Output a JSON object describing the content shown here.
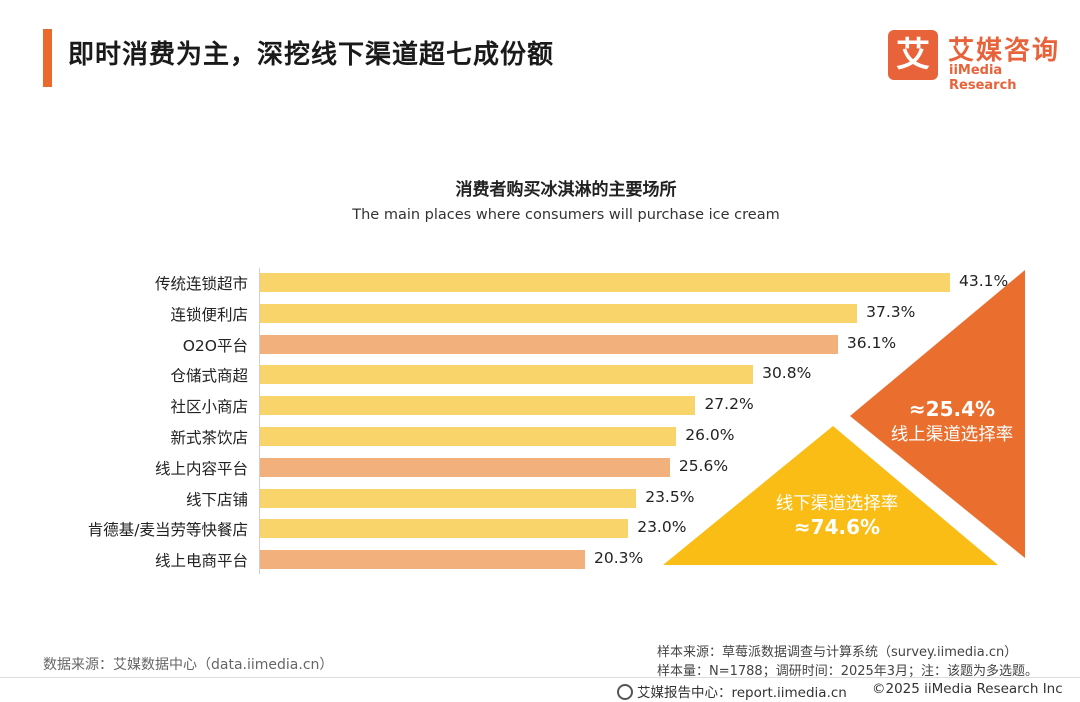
{
  "header": {
    "title": "即时消费为主，深挖线下渠道超七成份额"
  },
  "logo": {
    "mark": "艾",
    "cn": "艾媒咨询",
    "en": "iiMedia Research"
  },
  "chart_data": {
    "type": "bar",
    "orientation": "horizontal",
    "title": "消费者购买冰淇淋的主要场所",
    "subtitle": "The main places where  consumers will purchase ice cream",
    "categories": [
      "传统连锁超市",
      "连锁便利店",
      "O2O平台",
      "仓储式商超",
      "社区小商店",
      "新式茶饮店",
      "线上内容平台",
      "线下店铺",
      "肯德基/麦当劳等快餐店",
      "线上电商平台"
    ],
    "values": [
      43.1,
      37.3,
      36.1,
      30.8,
      27.2,
      26.0,
      25.6,
      23.5,
      23.0,
      20.3
    ],
    "value_labels": [
      "43.1%",
      "37.3%",
      "36.1%",
      "30.8%",
      "27.2%",
      "26.0%",
      "25.6%",
      "23.5%",
      "23.0%",
      "20.3%"
    ],
    "channel": [
      "offline",
      "offline",
      "online",
      "offline",
      "offline",
      "offline",
      "online",
      "offline",
      "offline",
      "online"
    ],
    "colors": {
      "offline": "#f9d46a",
      "online": "#f2b07c"
    },
    "xlim": [
      0,
      43.1
    ],
    "annotations": [
      {
        "id": "online",
        "value": "≈25.4%",
        "label": "线上渠道选择率",
        "color": "#ea6f2e"
      },
      {
        "id": "offline",
        "value": "≈74.6%",
        "label": "线下渠道选择率",
        "color": "#f9bd15"
      }
    ]
  },
  "source": {
    "data_source": "数据来源：艾媒数据中心（data.iimedia.cn）",
    "sample_source": "样本来源：草莓派数据调查与计算系统（survey.iimedia.cn）",
    "sample_info": "样本量：N=1788；调研时间：2025年3月；注：该题为多选题。"
  },
  "footer": {
    "report_center": "艾媒报告中心：report.iimedia.cn",
    "copyright": "©2025  iiMedia Research  Inc"
  }
}
